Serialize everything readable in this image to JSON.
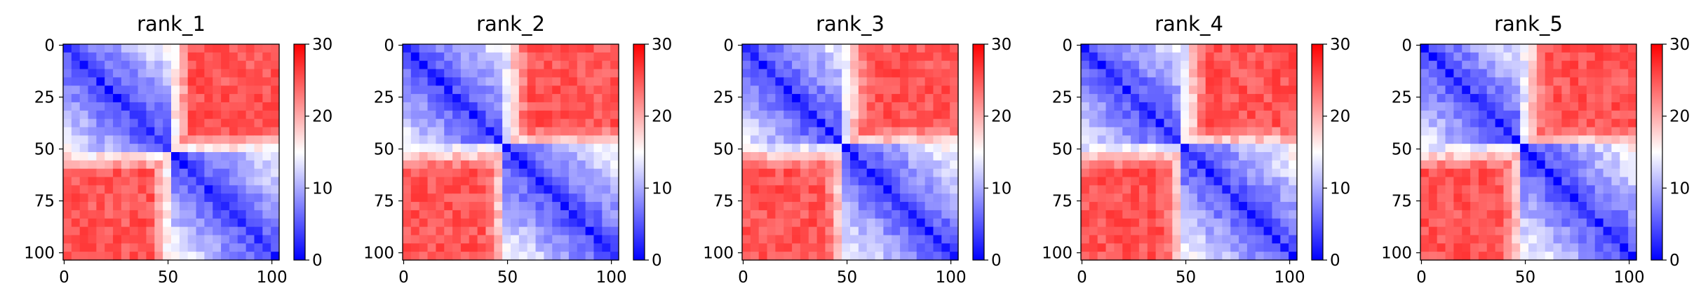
{
  "chart_data": [
    {
      "type": "heatmap",
      "title": "rank_1",
      "xticks": [
        "0",
        "50",
        "100"
      ],
      "yticks": [
        "0",
        "25",
        "50",
        "75",
        "100"
      ],
      "colorbar_ticks": [
        "0",
        "10",
        "20",
        "30"
      ],
      "vmin": 0,
      "vmax": 30,
      "size": 104,
      "split": 52,
      "colormap": [
        "#0000ff",
        "#ffffff",
        "#ff0000"
      ]
    },
    {
      "type": "heatmap",
      "title": "rank_2",
      "xticks": [
        "0",
        "50",
        "100"
      ],
      "yticks": [
        "0",
        "25",
        "50",
        "75",
        "100"
      ],
      "colorbar_ticks": [
        "0",
        "10",
        "20",
        "30"
      ],
      "vmin": 0,
      "vmax": 30,
      "size": 104,
      "split": 50,
      "colormap": [
        "#0000ff",
        "#ffffff",
        "#ff0000"
      ]
    },
    {
      "type": "heatmap",
      "title": "rank_3",
      "xticks": [
        "0",
        "50",
        "100"
      ],
      "yticks": [
        "0",
        "25",
        "50",
        "75",
        "100"
      ],
      "colorbar_ticks": [
        "0",
        "10",
        "20",
        "30"
      ],
      "vmin": 0,
      "vmax": 30,
      "size": 104,
      "split": 50,
      "colormap": [
        "#0000ff",
        "#ffffff",
        "#ff0000"
      ]
    },
    {
      "type": "heatmap",
      "title": "rank_4",
      "xticks": [
        "0",
        "50",
        "100"
      ],
      "yticks": [
        "0",
        "25",
        "50",
        "75",
        "100"
      ],
      "colorbar_ticks": [
        "0",
        "10",
        "20",
        "30"
      ],
      "vmin": 0,
      "vmax": 30,
      "size": 104,
      "split": 50,
      "colormap": [
        "#0000ff",
        "#ffffff",
        "#ff0000"
      ]
    },
    {
      "type": "heatmap",
      "title": "rank_5",
      "xticks": [
        "0",
        "50",
        "100"
      ],
      "yticks": [
        "0",
        "25",
        "50",
        "75",
        "100"
      ],
      "colorbar_ticks": [
        "0",
        "10",
        "20",
        "30"
      ],
      "vmin": 0,
      "vmax": 30,
      "size": 104,
      "split": 50,
      "colormap": [
        "#0000ff",
        "#ffffff",
        "#ff0000"
      ]
    }
  ]
}
